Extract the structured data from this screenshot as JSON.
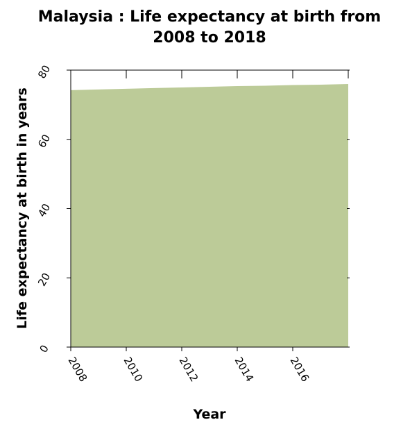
{
  "chart_data": {
    "type": "area",
    "title_line1": "Malaysia : Life expectancy at birth from",
    "title_line2": "2008 to 2018",
    "xlabel": "Year",
    "ylabel": "Life expectancy at birth in years",
    "x": [
      2008,
      2009,
      2010,
      2011,
      2012,
      2013,
      2014,
      2015,
      2016,
      2017,
      2018
    ],
    "values": [
      74.2,
      74.4,
      74.6,
      74.8,
      75.0,
      75.2,
      75.4,
      75.5,
      75.7,
      75.8,
      76.0
    ],
    "xlim": [
      2008,
      2018
    ],
    "ylim": [
      0,
      80
    ],
    "xticks": [
      "2008",
      "2010",
      "2012",
      "2014",
      "2016"
    ],
    "yticks": [
      "0",
      "20",
      "40",
      "60",
      "80"
    ],
    "fill_color": "#bccb98",
    "grid": false,
    "legend": "none"
  }
}
